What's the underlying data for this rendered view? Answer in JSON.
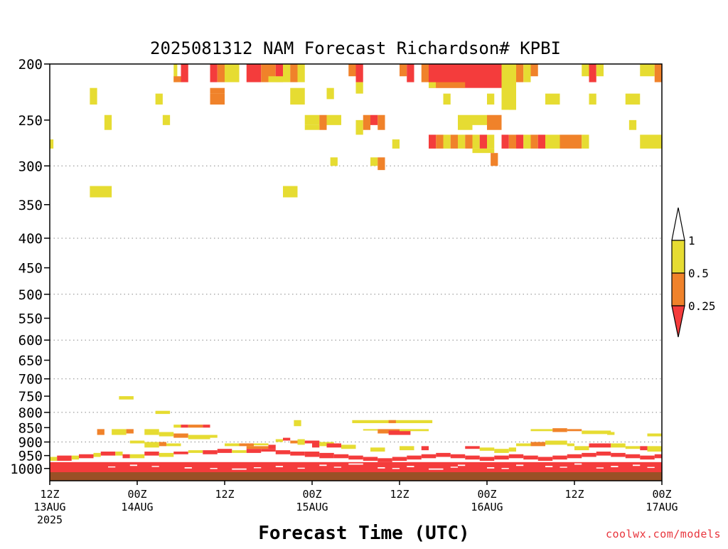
{
  "chart_data": {
    "type": "heatmap",
    "title": "2025081312 NAM Forecast Richardson# KPBI",
    "xlabel": "Forecast Time (UTC)",
    "ylabel": "",
    "x_unit": "hours since 12Z 13AUG 2025",
    "xlim": [
      0,
      84
    ],
    "y_scale": "log",
    "ylim": [
      1050,
      200
    ],
    "y_ticks": [
      200,
      250,
      300,
      350,
      400,
      450,
      500,
      550,
      600,
      650,
      700,
      750,
      800,
      850,
      900,
      950,
      1000
    ],
    "y_gridlines": [
      300,
      400,
      500,
      600,
      700,
      800,
      900
    ],
    "x_ticks": [
      {
        "hour": 0,
        "line1": "12Z",
        "line2": "13AUG",
        "line3": "2025"
      },
      {
        "hour": 12,
        "line1": "00Z",
        "line2": "14AUG",
        "line3": ""
      },
      {
        "hour": 24,
        "line1": "12Z",
        "line2": "",
        "line3": ""
      },
      {
        "hour": 36,
        "line1": "00Z",
        "line2": "15AUG",
        "line3": ""
      },
      {
        "hour": 48,
        "line1": "12Z",
        "line2": "",
        "line3": ""
      },
      {
        "hour": 60,
        "line1": "00Z",
        "line2": "16AUG",
        "line3": ""
      },
      {
        "hour": 72,
        "line1": "12Z",
        "line2": "",
        "line3": ""
      },
      {
        "hour": 84,
        "line1": "00Z",
        "line2": "17AUG",
        "line3": ""
      }
    ],
    "levels": [
      {
        "max": 0.25,
        "color": "#f43c3c"
      },
      {
        "min": 0.25,
        "max": 0.5,
        "color": "#f0822a"
      },
      {
        "min": 0.5,
        "max": 1,
        "color": "#e6dc32"
      }
    ],
    "colorbar_labels": [
      "1",
      "0.5",
      "0.25"
    ],
    "ground_color": "#9a5026",
    "cells": [
      [
        17,
        17.5,
        200,
        215,
        2
      ],
      [
        18,
        19,
        200,
        215,
        0
      ],
      [
        22,
        23,
        200,
        215,
        0
      ],
      [
        23,
        24,
        200,
        215,
        1
      ],
      [
        24,
        26,
        200,
        215,
        2
      ],
      [
        27,
        29,
        200,
        215,
        0
      ],
      [
        29,
        31,
        200,
        215,
        1
      ],
      [
        31,
        32,
        200,
        215,
        0
      ],
      [
        32,
        33,
        200,
        215,
        2
      ],
      [
        33,
        34,
        200,
        215,
        1
      ],
      [
        34,
        35,
        200,
        215,
        2
      ],
      [
        41,
        42,
        200,
        210,
        1
      ],
      [
        42,
        43,
        200,
        215,
        0
      ],
      [
        48,
        49,
        200,
        210,
        1
      ],
      [
        49,
        50,
        200,
        215,
        0
      ],
      [
        51,
        52,
        200,
        215,
        1
      ],
      [
        52,
        62,
        200,
        220,
        0
      ],
      [
        52,
        53,
        215,
        220,
        2
      ],
      [
        62,
        64,
        200,
        225,
        2
      ],
      [
        64,
        65,
        200,
        215,
        1
      ],
      [
        65,
        66,
        200,
        215,
        2
      ],
      [
        66,
        67,
        200,
        210,
        1
      ],
      [
        73,
        74,
        200,
        210,
        2
      ],
      [
        74,
        75,
        200,
        215,
        0
      ],
      [
        75,
        76,
        200,
        210,
        2
      ],
      [
        81,
        83,
        200,
        210,
        2
      ],
      [
        83,
        84,
        200,
        215,
        1
      ],
      [
        17,
        18,
        210,
        215,
        1
      ],
      [
        30,
        32,
        210,
        215,
        2
      ],
      [
        53,
        57,
        215,
        220,
        1
      ],
      [
        22,
        24,
        220,
        225,
        1
      ],
      [
        22,
        24,
        225,
        235,
        1
      ],
      [
        5.5,
        6.5,
        220,
        235,
        2
      ],
      [
        14.5,
        15.5,
        225,
        235,
        2
      ],
      [
        33,
        35,
        220,
        235,
        2
      ],
      [
        38,
        39,
        220,
        230,
        2
      ],
      [
        42,
        43,
        215,
        225,
        2
      ],
      [
        54,
        55,
        225,
        235,
        2
      ],
      [
        60,
        61,
        225,
        235,
        2
      ],
      [
        62,
        64,
        215,
        240,
        2
      ],
      [
        68,
        70,
        225,
        235,
        2
      ],
      [
        74,
        75,
        225,
        235,
        2
      ],
      [
        79,
        81,
        225,
        235,
        2
      ],
      [
        63,
        64,
        235,
        240,
        2
      ],
      [
        35,
        37,
        245,
        255,
        2
      ],
      [
        37,
        38,
        245,
        260,
        1
      ],
      [
        38,
        40,
        245,
        255,
        2
      ],
      [
        42,
        43,
        250,
        265,
        2
      ],
      [
        43,
        44,
        245,
        260,
        1
      ],
      [
        44,
        45,
        245,
        255,
        0
      ],
      [
        45,
        46,
        245,
        260,
        1
      ],
      [
        56,
        58,
        245,
        260,
        2
      ],
      [
        58,
        60,
        245,
        255,
        2
      ],
      [
        60,
        62,
        245,
        260,
        1
      ],
      [
        7.5,
        8.5,
        245,
        260,
        2
      ],
      [
        15.5,
        16.5,
        245,
        255,
        2
      ],
      [
        79.5,
        80.5,
        250,
        260,
        2
      ],
      [
        35,
        37,
        255,
        260,
        2
      ],
      [
        52,
        53,
        265,
        280,
        0
      ],
      [
        53,
        54,
        265,
        280,
        1
      ],
      [
        54,
        55,
        265,
        280,
        2
      ],
      [
        55,
        56,
        265,
        280,
        1
      ],
      [
        56,
        57,
        265,
        280,
        2
      ],
      [
        57,
        58,
        265,
        280,
        1
      ],
      [
        58,
        59,
        265,
        280,
        2
      ],
      [
        59,
        60,
        265,
        280,
        0
      ],
      [
        60,
        61,
        265,
        280,
        2
      ],
      [
        62,
        63,
        265,
        280,
        0
      ],
      [
        63,
        64,
        265,
        280,
        1
      ],
      [
        64,
        65,
        265,
        280,
        0
      ],
      [
        65,
        66,
        265,
        280,
        2
      ],
      [
        66,
        67,
        265,
        280,
        1
      ],
      [
        67,
        68,
        265,
        280,
        0
      ],
      [
        68,
        70,
        265,
        280,
        2
      ],
      [
        70,
        73,
        265,
        280,
        1
      ],
      [
        73,
        74,
        265,
        280,
        2
      ],
      [
        81,
        84,
        265,
        280,
        2
      ],
      [
        47,
        48,
        270,
        280,
        2
      ],
      [
        0,
        0.5,
        270,
        280,
        2
      ],
      [
        58,
        61,
        280,
        285,
        2
      ],
      [
        60.5,
        61.5,
        285,
        300,
        1
      ],
      [
        38.5,
        39.5,
        290,
        300,
        2
      ],
      [
        44,
        45,
        290,
        300,
        2
      ],
      [
        45,
        46,
        290,
        305,
        1
      ],
      [
        5.5,
        8.5,
        325,
        340,
        2
      ],
      [
        32,
        34,
        325,
        340,
        2
      ],
      [
        9.5,
        11.5,
        750,
        760,
        2
      ],
      [
        14.5,
        16.5,
        795,
        805,
        2
      ],
      [
        41.5,
        52.5,
        825,
        835,
        2
      ],
      [
        46.5,
        47.5,
        825,
        835,
        1
      ],
      [
        33.5,
        34.5,
        825,
        845,
        2
      ],
      [
        17,
        18,
        840,
        850,
        2
      ],
      [
        18,
        19,
        840,
        850,
        0
      ],
      [
        19,
        21,
        840,
        850,
        1
      ],
      [
        21,
        22,
        840,
        850,
        0
      ],
      [
        43,
        45,
        855,
        860,
        2
      ],
      [
        45,
        48,
        855,
        870,
        1
      ],
      [
        46.5,
        49.5,
        860,
        875,
        0
      ],
      [
        48,
        52,
        855,
        862,
        2
      ],
      [
        66,
        69,
        855,
        862,
        2
      ],
      [
        69,
        71,
        852,
        865,
        1
      ],
      [
        71,
        73,
        855,
        862,
        1
      ],
      [
        73,
        77,
        860,
        872,
        2
      ],
      [
        76.5,
        77.5,
        865,
        875,
        2
      ],
      [
        6.5,
        7.5,
        855,
        875,
        1
      ],
      [
        8.5,
        10.5,
        855,
        875,
        2
      ],
      [
        10.5,
        11.5,
        855,
        870,
        1
      ],
      [
        13,
        15,
        855,
        875,
        2
      ],
      [
        15,
        17,
        865,
        880,
        2
      ],
      [
        17,
        19,
        870,
        885,
        1
      ],
      [
        19,
        22,
        875,
        890,
        2
      ],
      [
        22,
        23,
        875,
        885,
        2
      ],
      [
        82,
        84,
        870,
        880,
        2
      ],
      [
        11,
        13,
        895,
        905,
        2
      ],
      [
        13,
        15,
        900,
        920,
        2
      ],
      [
        15,
        16,
        900,
        915,
        1
      ],
      [
        16,
        18,
        905,
        915,
        2
      ],
      [
        24,
        26,
        905,
        915,
        2
      ],
      [
        26,
        28,
        905,
        915,
        1
      ],
      [
        28,
        30,
        905,
        912,
        2
      ],
      [
        31,
        32,
        890,
        900,
        2
      ],
      [
        32,
        33,
        885,
        895,
        0
      ],
      [
        33,
        34,
        895,
        905,
        1
      ],
      [
        34,
        35,
        890,
        910,
        2
      ],
      [
        35,
        36,
        895,
        905,
        0
      ],
      [
        36,
        37,
        895,
        920,
        0
      ],
      [
        37,
        39,
        900,
        915,
        2
      ],
      [
        38,
        40,
        905,
        920,
        0
      ],
      [
        40,
        42,
        910,
        925,
        2
      ],
      [
        27,
        30,
        915,
        925,
        1
      ],
      [
        30,
        31,
        910,
        925,
        0
      ],
      [
        44,
        46,
        920,
        935,
        2
      ],
      [
        48,
        50,
        915,
        930,
        2
      ],
      [
        51,
        52,
        915,
        930,
        0
      ],
      [
        57,
        59,
        915,
        925,
        0
      ],
      [
        59,
        61,
        920,
        932,
        2
      ],
      [
        61,
        63,
        925,
        940,
        2
      ],
      [
        63,
        64,
        920,
        935,
        2
      ],
      [
        64,
        66,
        905,
        915,
        2
      ],
      [
        66,
        68,
        900,
        915,
        1
      ],
      [
        68,
        71,
        895,
        910,
        2
      ],
      [
        71,
        72,
        905,
        915,
        2
      ],
      [
        72,
        74,
        915,
        930,
        2
      ],
      [
        74,
        77,
        905,
        920,
        0
      ],
      [
        77,
        79,
        905,
        920,
        2
      ],
      [
        79,
        81,
        915,
        925,
        2
      ],
      [
        81,
        82,
        915,
        930,
        0
      ],
      [
        82,
        84,
        915,
        935,
        2
      ],
      [
        0,
        1,
        955,
        970,
        2
      ],
      [
        1,
        3,
        950,
        970,
        0
      ],
      [
        3,
        4,
        950,
        965,
        2
      ],
      [
        4,
        6,
        945,
        960,
        0
      ],
      [
        6,
        7,
        940,
        955,
        2
      ],
      [
        7,
        9,
        935,
        950,
        0
      ],
      [
        9,
        10,
        935,
        950,
        2
      ],
      [
        10,
        11,
        945,
        960,
        0
      ],
      [
        11,
        13,
        945,
        960,
        2
      ],
      [
        13,
        15,
        935,
        950,
        0
      ],
      [
        15,
        17,
        940,
        955,
        2
      ],
      [
        17,
        19,
        935,
        945,
        0
      ],
      [
        19,
        21,
        930,
        940,
        2
      ],
      [
        21,
        23,
        930,
        945,
        0
      ],
      [
        23,
        25,
        925,
        940,
        0
      ],
      [
        25,
        27,
        930,
        940,
        2
      ],
      [
        27,
        29,
        925,
        940,
        0
      ],
      [
        29,
        31,
        925,
        935,
        0
      ],
      [
        31,
        33,
        930,
        945,
        0
      ],
      [
        33,
        35,
        935,
        950,
        0
      ],
      [
        35,
        37,
        935,
        955,
        0
      ],
      [
        37,
        39,
        940,
        960,
        0
      ],
      [
        39,
        41,
        945,
        960,
        0
      ],
      [
        41,
        43,
        950,
        965,
        0
      ],
      [
        43,
        45,
        955,
        970,
        0
      ],
      [
        45,
        47,
        960,
        975,
        0
      ],
      [
        47,
        49,
        955,
        970,
        0
      ],
      [
        49,
        51,
        950,
        965,
        0
      ],
      [
        51,
        53,
        945,
        960,
        0
      ],
      [
        53,
        55,
        940,
        955,
        0
      ],
      [
        55,
        57,
        945,
        960,
        0
      ],
      [
        57,
        59,
        950,
        965,
        0
      ],
      [
        59,
        61,
        955,
        970,
        0
      ],
      [
        61,
        63,
        950,
        965,
        0
      ],
      [
        63,
        65,
        945,
        960,
        0
      ],
      [
        65,
        67,
        950,
        965,
        0
      ],
      [
        67,
        69,
        955,
        970,
        0
      ],
      [
        69,
        71,
        950,
        965,
        0
      ],
      [
        71,
        73,
        945,
        960,
        0
      ],
      [
        73,
        75,
        940,
        955,
        0
      ],
      [
        75,
        77,
        935,
        950,
        0
      ],
      [
        77,
        79,
        940,
        955,
        0
      ],
      [
        79,
        81,
        945,
        960,
        0
      ],
      [
        81,
        83,
        950,
        965,
        0
      ],
      [
        83,
        84,
        945,
        960,
        0
      ],
      [
        0,
        84,
        975,
        1015,
        0
      ],
      [
        0,
        84,
        1005,
        1015,
        0
      ]
    ],
    "white_gaps": [
      [
        11,
        12,
        985,
        990
      ],
      [
        18.5,
        19.5,
        995,
        1000
      ],
      [
        25,
        27,
        1000,
        1005
      ],
      [
        31,
        32,
        990,
        995
      ],
      [
        37,
        38,
        985,
        990
      ],
      [
        41,
        43,
        980,
        985
      ],
      [
        45,
        46,
        995,
        1000
      ],
      [
        49,
        50,
        990,
        995
      ],
      [
        52,
        54,
        1000,
        1005
      ],
      [
        56,
        57,
        985,
        990
      ],
      [
        60,
        61,
        995,
        1000
      ],
      [
        64,
        65,
        985,
        990
      ],
      [
        68,
        69,
        990,
        995
      ],
      [
        72,
        73,
        980,
        985
      ],
      [
        77,
        78,
        990,
        995
      ],
      [
        80,
        81,
        985,
        990
      ],
      [
        8,
        9,
        992,
        996
      ],
      [
        14,
        15,
        990,
        994
      ],
      [
        22,
        23,
        998,
        1002
      ],
      [
        28,
        29,
        995,
        999
      ],
      [
        34,
        35,
        997,
        1001
      ],
      [
        39,
        40,
        993,
        997
      ],
      [
        47,
        48,
        998,
        1002
      ],
      [
        55,
        56,
        993,
        997
      ],
      [
        62,
        63,
        998,
        1002
      ],
      [
        70,
        71,
        993,
        997
      ],
      [
        75,
        76,
        996,
        1000
      ],
      [
        82,
        83,
        994,
        998
      ]
    ]
  },
  "watermark": "coolwx.com/models"
}
